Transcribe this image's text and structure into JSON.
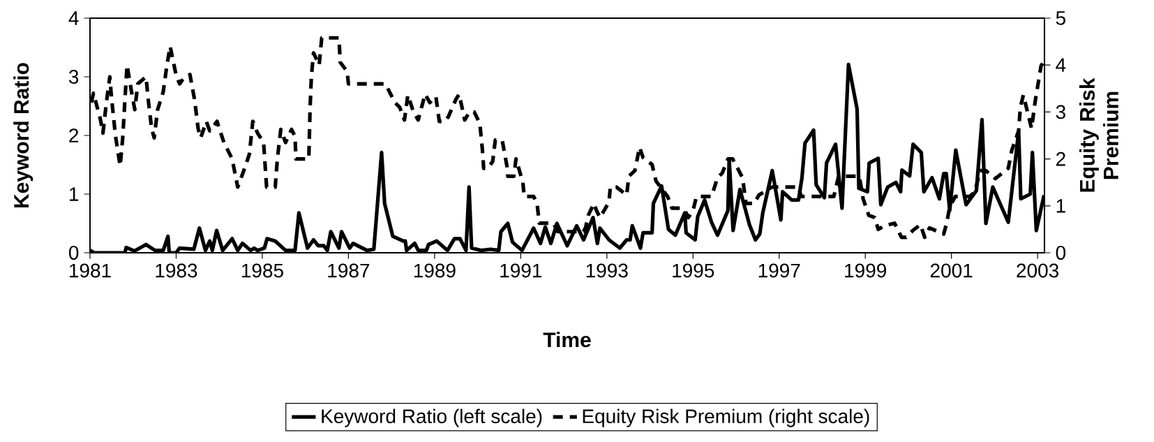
{
  "chart_data": {
    "type": "line",
    "xlabel": "Time",
    "ylabel": "Keyword Ratio",
    "y2label": "Equity Risk Premium",
    "xlim": [
      1981,
      2003.16
    ],
    "xticks": [
      1981,
      1983,
      1985,
      1987,
      1989,
      1991,
      1993,
      1995,
      1997,
      1999,
      2001,
      2003
    ],
    "ylim": [
      0,
      4
    ],
    "yticks": [
      0,
      1,
      2,
      3,
      4
    ],
    "y2lim": [
      0,
      5
    ],
    "y2ticks": [
      0,
      1,
      2,
      3,
      4,
      5
    ],
    "legend": "bottom",
    "marker": "none",
    "series": [
      {
        "name": "Keyword Ratio (left scale)",
        "color": "#000000",
        "line_style": "solid",
        "x": [
          1981.0,
          1981.1,
          1981.81,
          1981.84,
          1982.03,
          1982.3,
          1982.51,
          1982.7,
          1982.81,
          1982.84,
          1983.0,
          1983.08,
          1983.41,
          1983.54,
          1983.68,
          1983.78,
          1983.84,
          1983.94,
          1984.08,
          1984.3,
          1984.43,
          1984.54,
          1984.73,
          1984.81,
          1984.89,
          1985.05,
          1985.11,
          1985.3,
          1985.54,
          1985.76,
          1985.85,
          1986.05,
          1986.19,
          1986.3,
          1986.43,
          1986.51,
          1986.59,
          1986.78,
          1986.84,
          1987.03,
          1987.11,
          1987.43,
          1987.59,
          1987.77,
          1987.84,
          1988.03,
          1988.27,
          1988.32,
          1988.35,
          1988.54,
          1988.62,
          1988.81,
          1988.86,
          1989.05,
          1989.3,
          1989.46,
          1989.59,
          1989.73,
          1989.8,
          1989.86,
          1990.08,
          1990.3,
          1990.49,
          1990.54,
          1990.7,
          1990.81,
          1991.03,
          1991.3,
          1991.46,
          1991.57,
          1991.7,
          1991.84,
          1992.08,
          1992.3,
          1992.46,
          1992.68,
          1992.78,
          1992.84,
          1993.05,
          1993.3,
          1993.46,
          1993.54,
          1993.59,
          1993.78,
          1993.84,
          1994.05,
          1994.08,
          1994.27,
          1994.43,
          1994.59,
          1994.81,
          1994.84,
          1995.05,
          1995.11,
          1995.27,
          1995.43,
          1995.57,
          1995.81,
          1995.84,
          1995.93,
          1996.09,
          1996.31,
          1996.45,
          1996.55,
          1996.62,
          1996.84,
          1997.04,
          1997.08,
          1997.29,
          1997.45,
          1997.53,
          1997.6,
          1997.8,
          1997.86,
          1998.05,
          1998.1,
          1998.31,
          1998.46,
          1998.61,
          1998.81,
          1998.85,
          1999.05,
          1999.09,
          1999.3,
          1999.36,
          1999.52,
          1999.71,
          1999.82,
          1999.85,
          2000.03,
          2000.11,
          2000.3,
          2000.36,
          2000.55,
          2000.72,
          2000.82,
          2000.88,
          2000.96,
          2001.1,
          2001.34,
          2001.58,
          2001.71,
          2001.8,
          2001.96,
          2002.32,
          2002.56,
          2002.61,
          2002.83,
          2002.88,
          2002.97,
          2003.15
        ],
        "values": [
          0.04,
          0,
          0,
          0.09,
          0.03,
          0.14,
          0.04,
          0.04,
          0.28,
          0,
          0,
          0.08,
          0.06,
          0.42,
          0.04,
          0.2,
          0.04,
          0.38,
          0.04,
          0.24,
          0.04,
          0.16,
          0.04,
          0.08,
          0.04,
          0.08,
          0.24,
          0.2,
          0.04,
          0.04,
          0.68,
          0.08,
          0.22,
          0.12,
          0.12,
          0.04,
          0.36,
          0.08,
          0.36,
          0.08,
          0.16,
          0.04,
          0.06,
          1.71,
          0.84,
          0.28,
          0.2,
          0.2,
          0.04,
          0.16,
          0.04,
          0.04,
          0.14,
          0.2,
          0.04,
          0.24,
          0.24,
          0.04,
          1.12,
          0.08,
          0.04,
          0.06,
          0.04,
          0.36,
          0.5,
          0.18,
          0.04,
          0.42,
          0.16,
          0.44,
          0.16,
          0.5,
          0.12,
          0.46,
          0.22,
          0.6,
          0.16,
          0.42,
          0.22,
          0.08,
          0.22,
          0.22,
          0.46,
          0.08,
          0.34,
          0.34,
          0.84,
          1.14,
          0.4,
          0.3,
          0.68,
          0.34,
          0.22,
          0.62,
          0.9,
          0.52,
          0.3,
          0.72,
          1.6,
          0.38,
          1.08,
          0.48,
          0.22,
          0.32,
          0.68,
          1.4,
          0.56,
          1.04,
          0.9,
          0.9,
          1.28,
          1.87,
          2.09,
          1.16,
          0.94,
          1.53,
          1.85,
          0.76,
          3.21,
          2.45,
          1.1,
          1.04,
          1.53,
          1.61,
          0.82,
          1.12,
          1.2,
          1.04,
          1.41,
          1.31,
          1.85,
          1.71,
          1.04,
          1.28,
          0.92,
          1.35,
          1.35,
          0.72,
          1.75,
          0.82,
          1.06,
          2.27,
          0.5,
          1.12,
          0.52,
          2.07,
          0.92,
          1.0,
          1.71,
          0.38,
          0.98
        ]
      },
      {
        "name": "Equity Risk Premium (right scale)",
        "color": "#000000",
        "line_style": "dashed",
        "axis": "y2",
        "x": [
          1981.03,
          1981.08,
          1981.24,
          1981.3,
          1981.38,
          1981.46,
          1981.5,
          1981.54,
          1981.59,
          1981.7,
          1981.76,
          1981.81,
          1981.86,
          1981.97,
          1982.04,
          1982.11,
          1982.3,
          1982.35,
          1982.43,
          1982.49,
          1982.57,
          1982.7,
          1982.78,
          1982.86,
          1983.0,
          1983.08,
          1983.16,
          1983.32,
          1983.43,
          1983.51,
          1983.57,
          1983.7,
          1983.78,
          1983.95,
          1984.0,
          1984.11,
          1984.3,
          1984.43,
          1984.57,
          1984.7,
          1984.78,
          1984.89,
          1985.03,
          1985.1,
          1985.3,
          1985.35,
          1985.43,
          1985.54,
          1985.68,
          1985.76,
          1985.78,
          1986.08,
          1986.11,
          1986.14,
          1986.19,
          1986.32,
          1986.38,
          1986.78,
          1986.81,
          1986.97,
          1987.0,
          1987.86,
          1988.08,
          1988.19,
          1988.3,
          1988.38,
          1988.51,
          1988.62,
          1988.78,
          1988.89,
          1989.03,
          1989.11,
          1989.24,
          1989.32,
          1989.49,
          1989.57,
          1989.7,
          1989.81,
          1989.92,
          1990.05,
          1990.11,
          1990.14,
          1990.24,
          1990.35,
          1990.41,
          1990.57,
          1990.68,
          1990.7,
          1990.84,
          1990.89,
          1991.05,
          1991.08,
          1991.3,
          1991.38,
          1991.43,
          1991.76,
          1991.86,
          1992.46,
          1992.51,
          1992.57,
          1992.62,
          1992.7,
          1992.76,
          1992.84,
          1993.05,
          1993.08,
          1993.22,
          1993.46,
          1993.51,
          1993.65,
          1993.76,
          1993.84,
          1994.05,
          1994.14,
          1994.41,
          1994.51,
          1994.7,
          1994.84,
          1994.89,
          1995.0,
          1995.08,
          1995.43,
          1995.57,
          1995.68,
          1995.81,
          1995.92,
          1995.98,
          1996.15,
          1996.23,
          1996.42,
          1996.53,
          1996.66,
          1996.83,
          1997.45,
          1997.51,
          1998.27,
          1998.38,
          1998.86,
          1998.95,
          1999.08,
          1999.22,
          1999.3,
          1999.46,
          1999.68,
          1999.84,
          1999.95,
          2000.11,
          2000.28,
          2000.38,
          2000.49,
          2000.82,
          2000.89,
          2000.96,
          2001.09,
          2001.42,
          2001.55,
          2001.66,
          2001.8,
          2002.02,
          2002.32,
          2002.4,
          2002.56,
          2002.6,
          2002.67,
          2002.82,
          2002.86,
          2002.94,
          2003.08,
          2003.13
        ],
        "values": [
          3.2,
          3.4,
          2.85,
          2.55,
          3.2,
          3.75,
          3.3,
          2.95,
          2.5,
          1.85,
          2.45,
          3.25,
          4.0,
          3.4,
          3.05,
          3.6,
          3.75,
          3.28,
          2.65,
          2.45,
          3.05,
          3.43,
          3.96,
          4.4,
          3.78,
          3.6,
          3.7,
          3.8,
          3.25,
          2.65,
          2.45,
          2.8,
          2.6,
          2.8,
          2.65,
          2.35,
          2.0,
          1.4,
          1.75,
          2.1,
          2.8,
          2.55,
          2.35,
          1.4,
          1.4,
          2.0,
          2.63,
          2.35,
          2.63,
          2.48,
          2.0,
          2.0,
          3.1,
          3.76,
          4.26,
          4.0,
          4.58,
          4.58,
          4.06,
          3.86,
          3.6,
          3.6,
          3.2,
          3.1,
          2.83,
          3.36,
          3.0,
          2.83,
          3.38,
          3.2,
          3.33,
          2.8,
          2.8,
          2.9,
          3.26,
          3.38,
          2.83,
          3.0,
          3.0,
          2.76,
          2.2,
          1.8,
          1.8,
          1.95,
          2.4,
          2.4,
          1.85,
          1.63,
          1.63,
          2.0,
          1.5,
          1.2,
          1.2,
          1.05,
          0.63,
          0.63,
          0.45,
          0.45,
          0.55,
          0.8,
          0.9,
          1.05,
          0.9,
          0.75,
          1.08,
          1.4,
          1.4,
          1.23,
          1.63,
          1.75,
          2.25,
          2.03,
          1.88,
          1.53,
          1.2,
          0.95,
          0.95,
          0.85,
          0.75,
          0.9,
          1.2,
          1.2,
          1.6,
          1.7,
          2.0,
          2.0,
          1.9,
          1.6,
          1.05,
          1.05,
          1.23,
          1.3,
          1.4,
          1.4,
          1.2,
          1.2,
          1.63,
          1.63,
          1.15,
          0.8,
          0.75,
          0.5,
          0.58,
          0.63,
          0.33,
          0.33,
          0.48,
          0.6,
          0.33,
          0.53,
          0.4,
          0.63,
          0.98,
          1.2,
          1.2,
          1.3,
          1.75,
          1.75,
          1.58,
          1.8,
          2.18,
          2.6,
          3.1,
          3.36,
          2.8,
          2.65,
          3.2,
          3.98,
          4.06
        ]
      }
    ]
  }
}
